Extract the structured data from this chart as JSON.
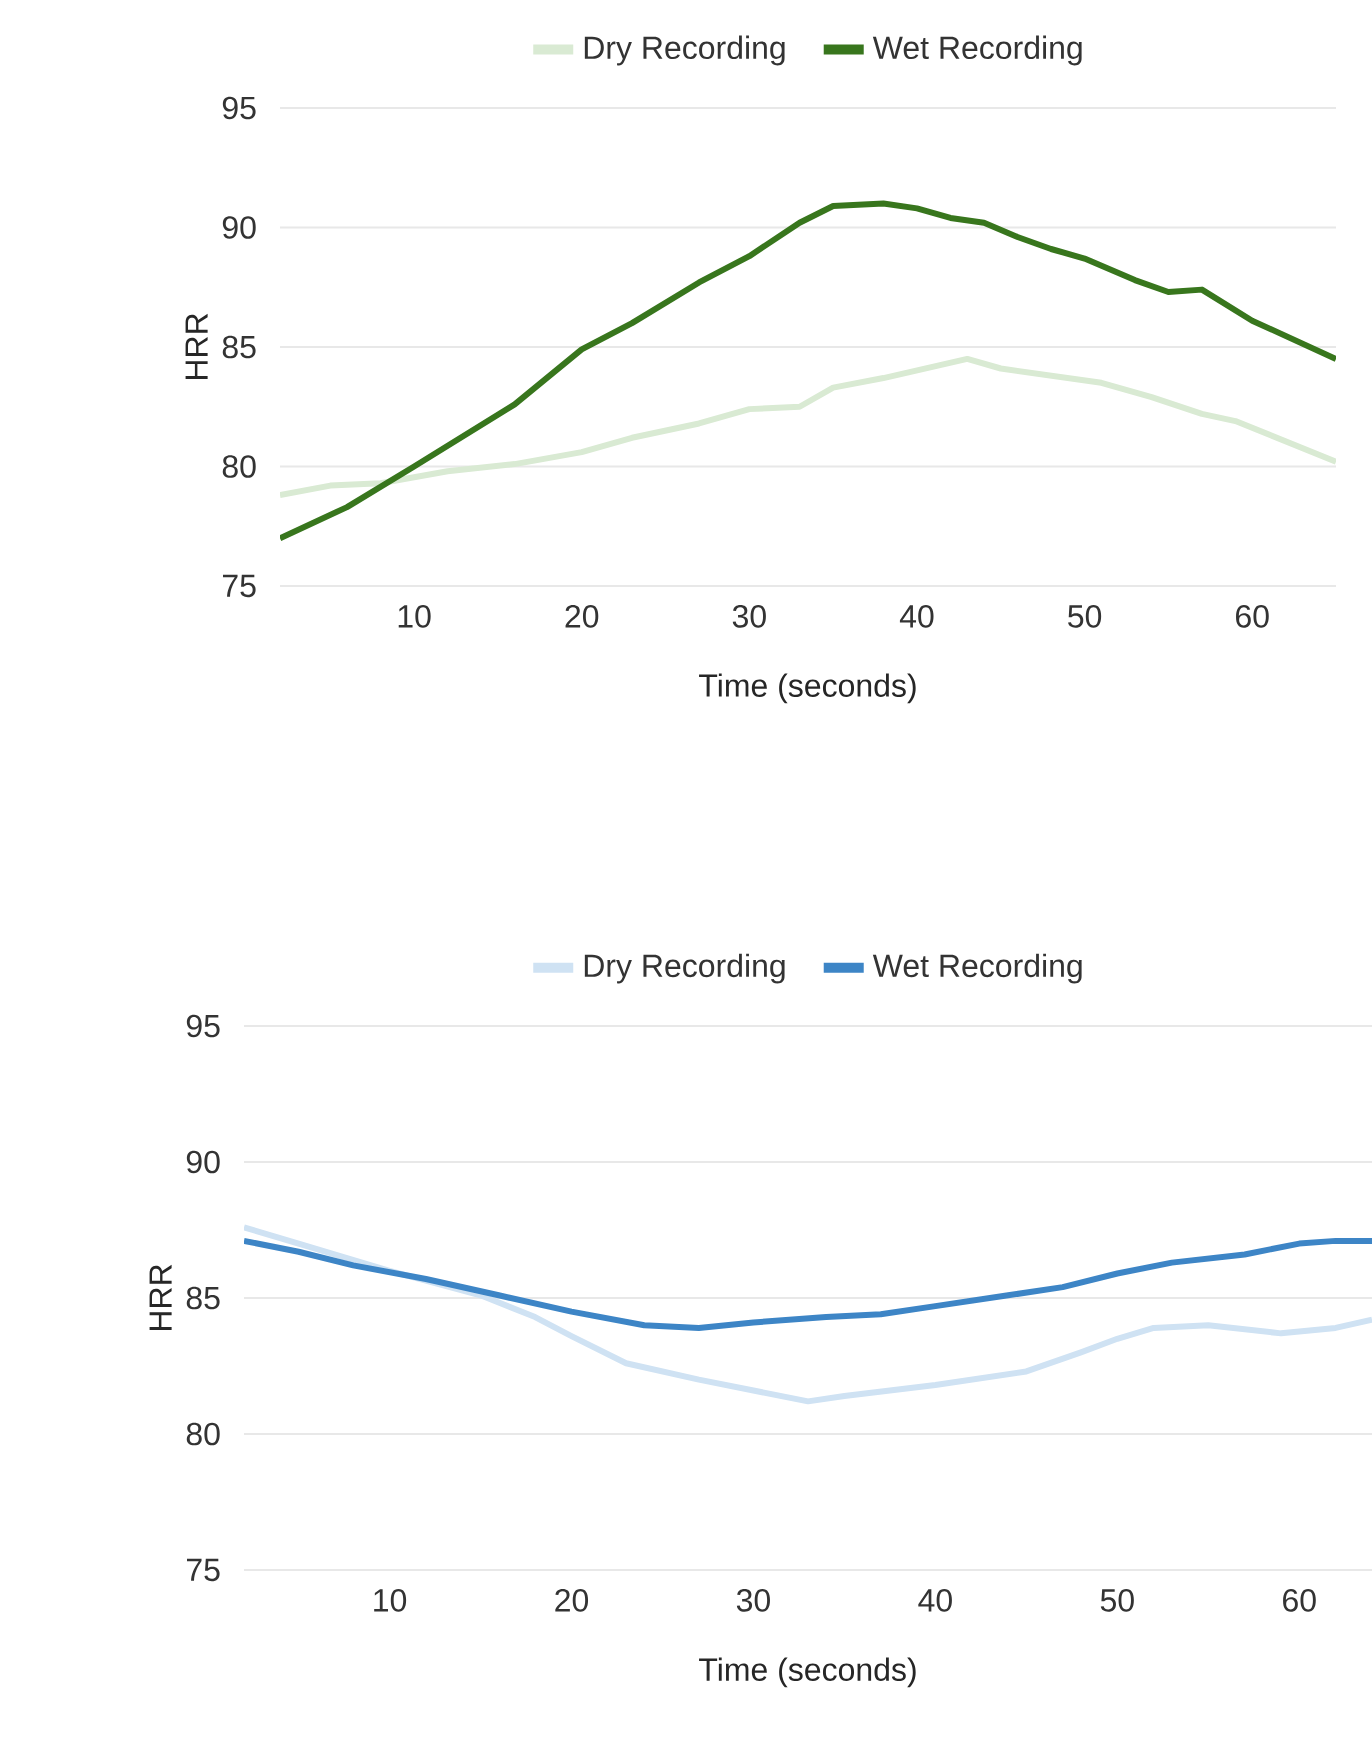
{
  "chart_data": [
    {
      "type": "line",
      "xlabel": "Time (seconds)",
      "ylabel": "HRR",
      "xlim": [
        2,
        65
      ],
      "ylim": [
        75,
        95
      ],
      "xticks": [
        10,
        20,
        30,
        40,
        50,
        60
      ],
      "yticks": [
        75,
        80,
        85,
        90,
        95
      ],
      "grid": "y",
      "legend": "top",
      "marker": "none",
      "line_style": "solid",
      "series": [
        {
          "name": "Dry Recording",
          "color": "#d9ead3",
          "x": [
            2,
            5,
            8,
            12,
            16,
            20,
            23,
            27,
            30,
            33,
            35,
            38,
            43,
            45,
            48,
            51,
            54,
            57,
            59,
            65
          ],
          "values": [
            78.8,
            79.2,
            79.3,
            79.8,
            80.1,
            80.6,
            81.2,
            81.8,
            82.4,
            82.5,
            83.3,
            83.7,
            84.5,
            84.1,
            83.8,
            83.5,
            82.9,
            82.2,
            81.9,
            80.2
          ]
        },
        {
          "name": "Wet Recording",
          "color": "#38761d",
          "x": [
            2,
            6,
            10,
            16,
            20,
            23,
            27,
            30,
            33,
            35,
            38,
            40,
            42,
            44,
            46,
            48,
            50,
            53,
            55,
            57,
            60,
            65
          ],
          "values": [
            77.0,
            78.3,
            80.0,
            82.6,
            84.9,
            86.0,
            87.7,
            88.8,
            90.2,
            90.9,
            91.0,
            90.8,
            90.4,
            90.2,
            89.6,
            89.1,
            88.7,
            87.8,
            87.3,
            87.4,
            86.1,
            84.5
          ]
        }
      ]
    },
    {
      "type": "line",
      "xlabel": "Time (seconds)",
      "ylabel": "HRR",
      "xlim": [
        2,
        64
      ],
      "ylim": [
        75,
        95
      ],
      "xticks": [
        10,
        20,
        30,
        40,
        50,
        60
      ],
      "yticks": [
        75,
        80,
        85,
        90,
        95
      ],
      "grid": "y",
      "legend": "top",
      "marker": "none",
      "line_style": "solid",
      "series": [
        {
          "name": "Dry Recording",
          "color": "#cfe2f3",
          "x": [
            2,
            5,
            10,
            15,
            18,
            20,
            23,
            27,
            30,
            33,
            35,
            40,
            45,
            48,
            50,
            52,
            55,
            59,
            62,
            64
          ],
          "values": [
            87.6,
            87.0,
            86.0,
            85.1,
            84.3,
            83.6,
            82.6,
            82.0,
            81.6,
            81.2,
            81.4,
            81.8,
            82.3,
            83.0,
            83.5,
            83.9,
            84.0,
            83.7,
            83.9,
            84.2
          ]
        },
        {
          "name": "Wet Recording",
          "color": "#3d85c6",
          "x": [
            2,
            5,
            8,
            12,
            16,
            20,
            24,
            27,
            30,
            34,
            37,
            40,
            44,
            47,
            50,
            53,
            57,
            60,
            62,
            64
          ],
          "values": [
            87.1,
            86.7,
            86.2,
            85.7,
            85.1,
            84.5,
            84.0,
            83.9,
            84.1,
            84.3,
            84.4,
            84.7,
            85.1,
            85.4,
            85.9,
            86.3,
            86.6,
            87.0,
            87.1,
            87.1
          ]
        }
      ]
    }
  ]
}
